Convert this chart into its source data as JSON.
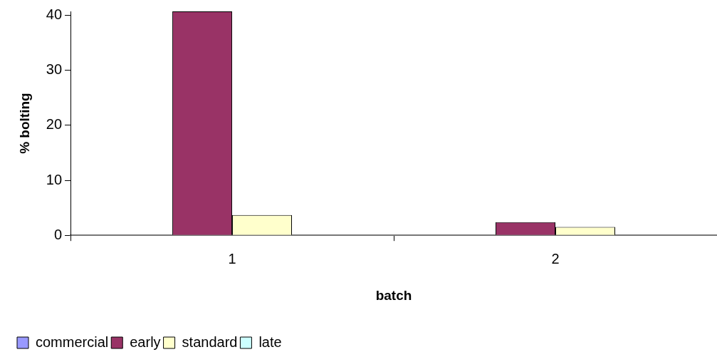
{
  "chart_data": {
    "type": "bar",
    "xlabel": "batch",
    "ylabel": "% bolting",
    "categories": [
      "1",
      "2"
    ],
    "series": [
      {
        "name": "commercial",
        "color": "#9999ff",
        "values": [
          0,
          0
        ]
      },
      {
        "name": "early",
        "color": "#993366",
        "values": [
          40.7,
          2.4
        ]
      },
      {
        "name": "standard",
        "color": "#ffffcc",
        "values": [
          3.7,
          1.5
        ]
      },
      {
        "name": "late",
        "color": "#ccffff",
        "values": [
          0,
          0
        ]
      }
    ],
    "ylim": [
      0,
      40.7
    ],
    "yticks": [
      0,
      10,
      20,
      30,
      40
    ],
    "grid": false,
    "legend": "bottom left"
  }
}
